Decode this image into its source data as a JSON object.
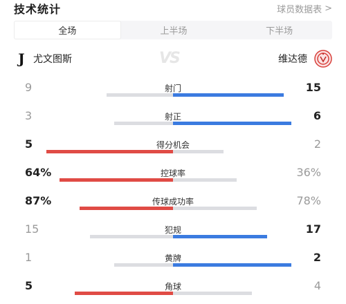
{
  "header": {
    "title": "技术统计",
    "link_label": "球员数据表",
    "link_chevron": ">"
  },
  "tabs": [
    {
      "label": "全场",
      "active": true
    },
    {
      "label": "上半场",
      "active": false
    },
    {
      "label": "下半场",
      "active": false
    }
  ],
  "teams": {
    "home": {
      "name": "尤文图斯",
      "logo_icon": "juventus-logo"
    },
    "away": {
      "name": "维达德",
      "logo_icon": "wydad-logo"
    }
  },
  "colors": {
    "home_accent": "#e04b45",
    "away_accent": "#3b7be0",
    "neutral": "#dcdde1"
  },
  "stats": [
    {
      "label": "射门",
      "home": "9",
      "away": "15",
      "home_share": 0.375,
      "away_share": 0.625,
      "leader": "away"
    },
    {
      "label": "射正",
      "home": "3",
      "away": "6",
      "home_share": 0.333,
      "away_share": 0.667,
      "leader": "away"
    },
    {
      "label": "得分机会",
      "home": "5",
      "away": "2",
      "home_share": 0.714,
      "away_share": 0.286,
      "leader": "home"
    },
    {
      "label": "控球率",
      "home": "64%",
      "away": "36%",
      "home_share": 0.64,
      "away_share": 0.36,
      "leader": "home"
    },
    {
      "label": "传球成功率",
      "home": "87%",
      "away": "78%",
      "home_share": 0.527,
      "away_share": 0.473,
      "leader": "home"
    },
    {
      "label": "犯规",
      "home": "15",
      "away": "17",
      "home_share": 0.469,
      "away_share": 0.531,
      "leader": "away"
    },
    {
      "label": "黄牌",
      "home": "1",
      "away": "2",
      "home_share": 0.333,
      "away_share": 0.667,
      "leader": "away"
    },
    {
      "label": "角球",
      "home": "5",
      "away": "4",
      "home_share": 0.556,
      "away_share": 0.444,
      "leader": "home"
    }
  ]
}
